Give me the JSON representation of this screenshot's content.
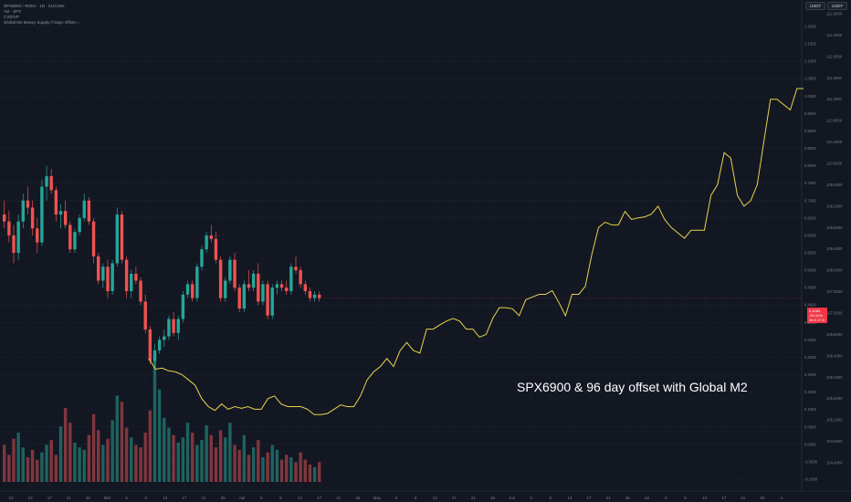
{
  "header": {
    "symbol_line": "SPX6900 / Tether · 1D · KUCOIN",
    "vol_line": "Vol · SPX",
    "ind_line": "CVD/VP",
    "m2_line": "Global M2 Money Supply // Days Offset ="
  },
  "unit_buttons": [
    "USDT",
    "USDT"
  ],
  "price_tag": [
    "0.4283",
    "-59.41%",
    "26.3 17.8"
  ],
  "annotation": "SPX6900 & 96 day offset with Global M2",
  "colors": {
    "bg": "#131722",
    "up": "#26a69a",
    "down": "#ef5350",
    "m2": "#e8d44d",
    "tag": "#f23645"
  },
  "chart_data": {
    "type": "candlestick+line",
    "x_ticks": [
      "10",
      "13",
      "17",
      "21",
      "25",
      "Mar",
      "5",
      "9",
      "13",
      "17",
      "21",
      "25",
      "Apr",
      "5",
      "9",
      "13",
      "17",
      "21",
      "25",
      "May",
      "5",
      "9",
      "13",
      "17",
      "21",
      "25",
      "Jun",
      "5",
      "9",
      "13",
      "17",
      "21",
      "25",
      "Jul",
      "5",
      "9",
      "13",
      "17",
      "21",
      "25",
      "A"
    ],
    "left_axis_ticks": [
      "1.2000",
      "1.1500",
      "1.1000",
      "1.0500",
      "1.0000",
      "0.9500",
      "0.9000",
      "0.8500",
      "0.8000",
      "0.7500",
      "0.7000",
      "0.6500",
      "0.6000",
      "0.5500",
      "0.5000",
      "0.4500",
      "0.4000",
      "0.3500",
      "0.3000",
      "0.2500",
      "0.2000",
      "0.1500",
      "0.1000",
      "0.0500",
      "0.0000",
      "-0.0500",
      "-0.1000"
    ],
    "right_axis_ticks": [
      "112.8000",
      "112.4000",
      "112.0000",
      "111.6000",
      "111.2000",
      "110.8000",
      "110.4000",
      "110.0000",
      "109.6000",
      "109.2000",
      "108.8000",
      "108.4000",
      "108.0000",
      "107.6000",
      "107.2000",
      "106.8000",
      "106.4000",
      "106.0000",
      "105.6000",
      "105.2000",
      "104.8000",
      "104.4000"
    ],
    "candles": [
      [
        0.66,
        0.7,
        0.62,
        0.64
      ],
      [
        0.64,
        0.67,
        0.58,
        0.6
      ],
      [
        0.6,
        0.63,
        0.52,
        0.55
      ],
      [
        0.55,
        0.66,
        0.53,
        0.64
      ],
      [
        0.64,
        0.72,
        0.62,
        0.7
      ],
      [
        0.7,
        0.74,
        0.66,
        0.68
      ],
      [
        0.68,
        0.7,
        0.6,
        0.62
      ],
      [
        0.62,
        0.65,
        0.55,
        0.58
      ],
      [
        0.58,
        0.76,
        0.57,
        0.74
      ],
      [
        0.74,
        0.8,
        0.7,
        0.77
      ],
      [
        0.77,
        0.79,
        0.72,
        0.73
      ],
      [
        0.73,
        0.74,
        0.64,
        0.66
      ],
      [
        0.66,
        0.69,
        0.62,
        0.67
      ],
      [
        0.67,
        0.7,
        0.62,
        0.63
      ],
      [
        0.63,
        0.64,
        0.55,
        0.56
      ],
      [
        0.56,
        0.62,
        0.55,
        0.61
      ],
      [
        0.61,
        0.66,
        0.6,
        0.65
      ],
      [
        0.65,
        0.72,
        0.64,
        0.7
      ],
      [
        0.7,
        0.71,
        0.63,
        0.64
      ],
      [
        0.64,
        0.65,
        0.52,
        0.54
      ],
      [
        0.54,
        0.55,
        0.46,
        0.47
      ],
      [
        0.47,
        0.52,
        0.45,
        0.51
      ],
      [
        0.51,
        0.53,
        0.42,
        0.44
      ],
      [
        0.44,
        0.53,
        0.43,
        0.52
      ],
      [
        0.52,
        0.68,
        0.51,
        0.66
      ],
      [
        0.66,
        0.67,
        0.52,
        0.53
      ],
      [
        0.53,
        0.54,
        0.42,
        0.44
      ],
      [
        0.44,
        0.5,
        0.42,
        0.49
      ],
      [
        0.49,
        0.51,
        0.46,
        0.47
      ],
      [
        0.47,
        0.48,
        0.4,
        0.41
      ],
      [
        0.41,
        0.43,
        0.32,
        0.33
      ],
      [
        0.33,
        0.34,
        0.23,
        0.24
      ],
      [
        0.24,
        0.29,
        0.22,
        0.27
      ],
      [
        0.27,
        0.31,
        0.26,
        0.3
      ],
      [
        0.3,
        0.33,
        0.28,
        0.31
      ],
      [
        0.31,
        0.37,
        0.3,
        0.36
      ],
      [
        0.36,
        0.38,
        0.31,
        0.32
      ],
      [
        0.32,
        0.37,
        0.3,
        0.36
      ],
      [
        0.36,
        0.44,
        0.35,
        0.43
      ],
      [
        0.43,
        0.47,
        0.42,
        0.46
      ],
      [
        0.46,
        0.47,
        0.41,
        0.42
      ],
      [
        0.42,
        0.52,
        0.41,
        0.51
      ],
      [
        0.51,
        0.57,
        0.5,
        0.56
      ],
      [
        0.56,
        0.61,
        0.55,
        0.6
      ],
      [
        0.6,
        0.63,
        0.58,
        0.59
      ],
      [
        0.59,
        0.61,
        0.52,
        0.53
      ],
      [
        0.53,
        0.54,
        0.41,
        0.42
      ],
      [
        0.42,
        0.48,
        0.41,
        0.47
      ],
      [
        0.47,
        0.54,
        0.46,
        0.53
      ],
      [
        0.53,
        0.55,
        0.44,
        0.45
      ],
      [
        0.45,
        0.46,
        0.38,
        0.39
      ],
      [
        0.39,
        0.47,
        0.38,
        0.46
      ],
      [
        0.46,
        0.5,
        0.44,
        0.45
      ],
      [
        0.45,
        0.5,
        0.44,
        0.49
      ],
      [
        0.49,
        0.52,
        0.4,
        0.41
      ],
      [
        0.41,
        0.47,
        0.4,
        0.46
      ],
      [
        0.46,
        0.47,
        0.36,
        0.37
      ],
      [
        0.37,
        0.46,
        0.36,
        0.45
      ],
      [
        0.45,
        0.47,
        0.43,
        0.46
      ],
      [
        0.46,
        0.47,
        0.44,
        0.45
      ],
      [
        0.45,
        0.47,
        0.43,
        0.44
      ],
      [
        0.44,
        0.52,
        0.43,
        0.51
      ],
      [
        0.51,
        0.54,
        0.49,
        0.5
      ],
      [
        0.5,
        0.51,
        0.45,
        0.46
      ],
      [
        0.46,
        0.47,
        0.43,
        0.44
      ],
      [
        0.44,
        0.45,
        0.41,
        0.42
      ],
      [
        0.42,
        0.44,
        0.41,
        0.43
      ],
      [
        0.43,
        0.44,
        0.41,
        0.42
      ]
    ],
    "volume": [
      30,
      22,
      35,
      40,
      28,
      20,
      26,
      18,
      24,
      30,
      34,
      22,
      45,
      60,
      48,
      32,
      28,
      26,
      38,
      55,
      42,
      30,
      35,
      50,
      70,
      65,
      44,
      36,
      30,
      28,
      40,
      58,
      100,
      75,
      52,
      44,
      38,
      32,
      36,
      48,
      40,
      30,
      34,
      46,
      38,
      28,
      42,
      36,
      48,
      30,
      26,
      38,
      22,
      28,
      34,
      20,
      24,
      30,
      26,
      18,
      22,
      20,
      16,
      24,
      18,
      14,
      12,
      16
    ],
    "m2_offset": {
      "name": "Global M2 Money Supply // Days Offset",
      "values": [
        106.35,
        106.15,
        106.17,
        106.12,
        106.1,
        106.05,
        105.95,
        105.85,
        105.6,
        105.45,
        105.38,
        105.5,
        105.4,
        105.45,
        105.42,
        105.45,
        105.4,
        105.4,
        105.6,
        105.65,
        105.5,
        105.45,
        105.45,
        105.45,
        105.4,
        105.3,
        105.3,
        105.32,
        105.4,
        105.48,
        105.45,
        105.45,
        105.65,
        105.95,
        106.1,
        106.2,
        106.35,
        106.2,
        106.5,
        106.65,
        106.5,
        106.45,
        106.9,
        106.9,
        106.98,
        107.05,
        107.1,
        107.05,
        106.9,
        106.9,
        106.75,
        106.8,
        107.1,
        107.3,
        107.3,
        107.28,
        107.15,
        107.45,
        107.5,
        107.55,
        107.55,
        107.62,
        107.4,
        107.15,
        107.55,
        107.55,
        107.7,
        108.3,
        108.8,
        108.9,
        108.85,
        108.85,
        109.1,
        108.95,
        108.98,
        109.0,
        109.05,
        109.2,
        108.95,
        108.8,
        108.7,
        108.6,
        108.75,
        108.75,
        108.75,
        109.4,
        109.6,
        110.2,
        110.1,
        109.4,
        109.2,
        109.3,
        109.6,
        110.4,
        111.2,
        111.2,
        111.1,
        111.0,
        111.4,
        111.4
      ]
    }
  }
}
